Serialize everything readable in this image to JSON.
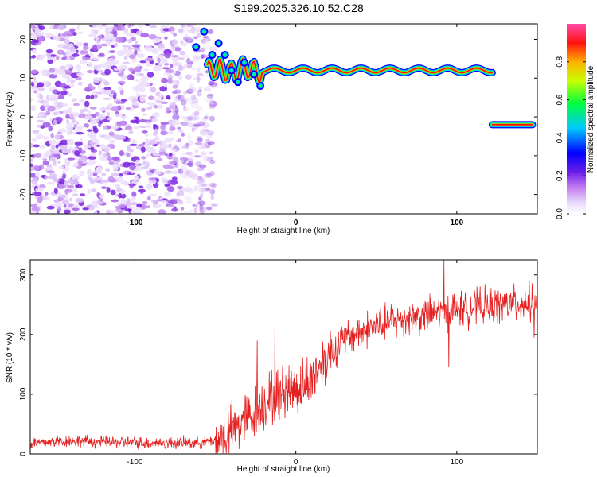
{
  "page": {
    "title": "S199.2025.326.10.52.C28"
  },
  "chart_data": [
    {
      "type": "heatmap",
      "title": "S199.2025.326.10.52.C28",
      "xlabel": "Height of straight line (km)",
      "ylabel": "Frequency (Hz)",
      "xlim": [
        -165,
        150
      ],
      "ylim": [
        -25,
        24
      ],
      "x_ticks": [
        -100,
        0,
        100
      ],
      "x_tick_labels": [
        "-100",
        "0",
        "100"
      ],
      "y_ticks": [
        -20,
        -10,
        0,
        10,
        20
      ],
      "y_tick_labels": [
        "-20",
        "-10",
        "0",
        "10",
        "20"
      ],
      "features": [
        {
          "name": "noise-region",
          "x_range": [
            -165,
            -60
          ],
          "y_range": [
            -25,
            24
          ],
          "amplitude": 0.1
        },
        {
          "name": "upper-line",
          "x_range": [
            -60,
            122
          ],
          "frequency_hz": 12,
          "amplitude": 0.9
        },
        {
          "name": "lower-line",
          "x_range": [
            122,
            150
          ],
          "frequency_hz": -2,
          "amplitude": 0.9
        }
      ],
      "colorbar": {
        "label": "Normalized spectral amplitude",
        "range": [
          0,
          1
        ],
        "ticks": [
          0.0,
          0.2,
          0.4,
          0.6,
          0.8
        ],
        "tick_labels": [
          "0.0",
          "0.2",
          "0.4",
          "0.6",
          "0.8"
        ],
        "colors": [
          "#ffffff",
          "#c89bf0",
          "#7a1ee8",
          "#0000ff",
          "#00c8ff",
          "#00ff40",
          "#c8ff00",
          "#ffc800",
          "#ff0000",
          "#ff50a0"
        ]
      }
    },
    {
      "type": "line",
      "xlabel": "Height of straight line (km)",
      "ylabel": "SNR (10 * v/v)",
      "xlim": [
        -165,
        150
      ],
      "ylim": [
        0,
        325
      ],
      "x_ticks": [
        -100,
        0,
        100
      ],
      "x_tick_labels": [
        "-100",
        "0",
        "100"
      ],
      "y_ticks": [
        0,
        100,
        200,
        300
      ],
      "y_tick_labels": [
        "0",
        "100",
        "200",
        "300"
      ],
      "series": [
        {
          "name": "SNR",
          "color": "#e52020",
          "x": [
            -165,
            -140,
            -120,
            -100,
            -80,
            -60,
            -50,
            -45,
            -40,
            -35,
            -30,
            -25,
            -20,
            -15,
            -10,
            -5,
            0,
            5,
            10,
            15,
            20,
            25,
            30,
            40,
            50,
            60,
            70,
            80,
            90,
            100,
            110,
            120,
            130,
            140,
            150
          ],
          "values": [
            18,
            22,
            20,
            19,
            18,
            19,
            22,
            28,
            38,
            50,
            60,
            72,
            85,
            95,
            100,
            108,
            110,
            115,
            128,
            148,
            168,
            178,
            192,
            205,
            215,
            222,
            228,
            232,
            238,
            242,
            245,
            248,
            250,
            252,
            255
          ],
          "spikes": [
            {
              "x": -24,
              "y": 190
            },
            {
              "x": -13,
              "y": 220
            },
            {
              "x": 92,
              "y": 325
            },
            {
              "x": 95,
              "y": 145
            },
            {
              "x": 148,
              "y": 195
            }
          ]
        }
      ]
    }
  ]
}
